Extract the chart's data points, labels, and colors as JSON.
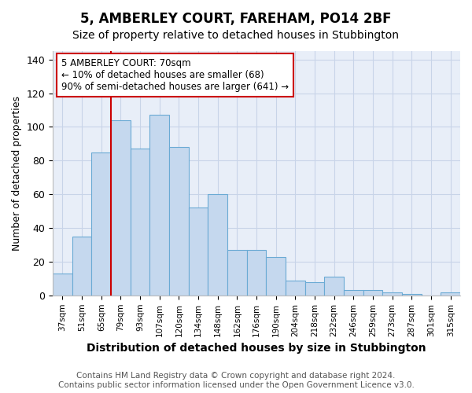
{
  "title": "5, AMBERLEY COURT, FAREHAM, PO14 2BF",
  "subtitle": "Size of property relative to detached houses in Stubbington",
  "xlabel": "Distribution of detached houses by size in Stubbington",
  "ylabel": "Number of detached properties",
  "categories": [
    "37sqm",
    "51sqm",
    "65sqm",
    "79sqm",
    "93sqm",
    "107sqm",
    "120sqm",
    "134sqm",
    "148sqm",
    "162sqm",
    "176sqm",
    "190sqm",
    "204sqm",
    "218sqm",
    "232sqm",
    "246sqm",
    "259sqm",
    "273sqm",
    "287sqm",
    "301sqm",
    "315sqm"
  ],
  "values": [
    13,
    35,
    85,
    104,
    87,
    107,
    88,
    52,
    60,
    27,
    27,
    23,
    9,
    8,
    11,
    3,
    3,
    2,
    1,
    0,
    2
  ],
  "bar_color": "#c5d8ee",
  "bar_edge_color": "#6aaad4",
  "vline_x": 2.5,
  "vline_color": "#cc0000",
  "annotation_box_text": "5 AMBERLEY COURT: 70sqm\n← 10% of detached houses are smaller (68)\n90% of semi-detached houses are larger (641) →",
  "annotation_fontsize": 8.5,
  "box_edge_color": "#cc0000",
  "ylim": [
    0,
    145
  ],
  "yticks": [
    0,
    20,
    40,
    60,
    80,
    100,
    120,
    140
  ],
  "grid_color": "#c8d4e8",
  "bg_color": "#e8eef8",
  "title_fontsize": 12,
  "subtitle_fontsize": 10,
  "footer_text": "Contains HM Land Registry data © Crown copyright and database right 2024.\nContains public sector information licensed under the Open Government Licence v3.0.",
  "footer_fontsize": 7.5
}
